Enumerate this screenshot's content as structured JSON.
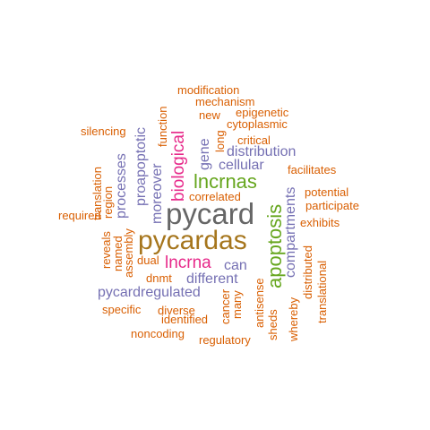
{
  "colors": {
    "orange": "#d95f02",
    "purple": "#7570b3",
    "magenta": "#e7298a",
    "green": "#66a61e",
    "gold": "#a6761d",
    "gray": "#666666",
    "background": "#ffffff"
  },
  "words": [
    {
      "id": "pycard",
      "text": "pycard",
      "color": "gray"
    },
    {
      "id": "pycardas",
      "text": "pycardas",
      "color": "gold"
    },
    {
      "id": "lncrnas",
      "text": "lncrnas",
      "color": "green"
    },
    {
      "id": "apoptosis",
      "text": "apoptosis",
      "color": "green"
    },
    {
      "id": "biological",
      "text": "biological",
      "color": "magenta"
    },
    {
      "id": "lncrna",
      "text": "lncrna",
      "color": "magenta"
    },
    {
      "id": "proapoptotic",
      "text": "proapoptotic",
      "color": "purple"
    },
    {
      "id": "processes",
      "text": "processes",
      "color": "purple"
    },
    {
      "id": "moreover",
      "text": "moreover",
      "color": "purple"
    },
    {
      "id": "distribution",
      "text": "distribution",
      "color": "purple"
    },
    {
      "id": "cellular",
      "text": "cellular",
      "color": "purple"
    },
    {
      "id": "gene",
      "text": "gene",
      "color": "purple"
    },
    {
      "id": "compartments",
      "text": "compartments",
      "color": "purple"
    },
    {
      "id": "can",
      "text": "can",
      "color": "purple"
    },
    {
      "id": "different",
      "text": "different",
      "color": "purple"
    },
    {
      "id": "pycardregulated",
      "text": "pycardregulated",
      "color": "purple"
    },
    {
      "id": "modification",
      "text": "modification",
      "color": "orange"
    },
    {
      "id": "mechanism",
      "text": "mechanism",
      "color": "orange"
    },
    {
      "id": "epigenetic",
      "text": "epigenetic",
      "color": "orange"
    },
    {
      "id": "new",
      "text": "new",
      "color": "orange"
    },
    {
      "id": "cytoplasmic",
      "text": "cytoplasmic",
      "color": "orange"
    },
    {
      "id": "silencing",
      "text": "silencing",
      "color": "orange"
    },
    {
      "id": "function",
      "text": "function",
      "color": "orange"
    },
    {
      "id": "long",
      "text": "long",
      "color": "orange"
    },
    {
      "id": "critical",
      "text": "critical",
      "color": "orange"
    },
    {
      "id": "facilitates",
      "text": "facilitates",
      "color": "orange"
    },
    {
      "id": "translation",
      "text": "translation",
      "color": "orange"
    },
    {
      "id": "region",
      "text": "region",
      "color": "orange"
    },
    {
      "id": "correlated",
      "text": "correlated",
      "color": "orange"
    },
    {
      "id": "potential",
      "text": "potential",
      "color": "orange"
    },
    {
      "id": "participate",
      "text": "participate",
      "color": "orange"
    },
    {
      "id": "required",
      "text": "required",
      "color": "orange"
    },
    {
      "id": "exhibits",
      "text": "exhibits",
      "color": "orange"
    },
    {
      "id": "reveals",
      "text": "reveals",
      "color": "orange"
    },
    {
      "id": "named",
      "text": "named",
      "color": "orange"
    },
    {
      "id": "assembly",
      "text": "assembly",
      "color": "orange"
    },
    {
      "id": "dual",
      "text": "dual",
      "color": "orange"
    },
    {
      "id": "dnmt",
      "text": "dnmt",
      "color": "orange"
    },
    {
      "id": "cancer",
      "text": "cancer",
      "color": "orange"
    },
    {
      "id": "many",
      "text": "many",
      "color": "orange"
    },
    {
      "id": "antisense",
      "text": "antisense",
      "color": "orange"
    },
    {
      "id": "sheds",
      "text": "sheds",
      "color": "orange"
    },
    {
      "id": "whereby",
      "text": "whereby",
      "color": "orange"
    },
    {
      "id": "distributed",
      "text": "distributed",
      "color": "orange"
    },
    {
      "id": "translational",
      "text": "translational",
      "color": "orange"
    },
    {
      "id": "specific",
      "text": "specific",
      "color": "orange"
    },
    {
      "id": "diverse",
      "text": "diverse",
      "color": "orange"
    },
    {
      "id": "identified",
      "text": "identified",
      "color": "orange"
    },
    {
      "id": "noncoding",
      "text": "noncoding",
      "color": "orange"
    },
    {
      "id": "regulatory",
      "text": "regulatory",
      "color": "orange"
    }
  ]
}
